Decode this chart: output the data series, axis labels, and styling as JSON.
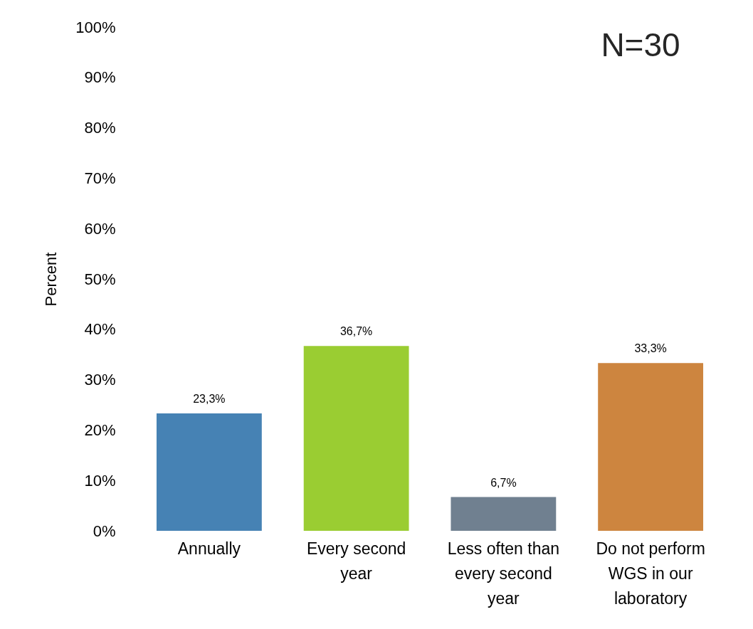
{
  "chart_data": {
    "type": "bar",
    "categories": [
      "Annually",
      "Every second year",
      "Less often than every second year",
      "Do not perform WGS in our laboratory"
    ],
    "values": [
      23.3,
      36.7,
      6.7,
      33.3
    ],
    "value_labels": [
      "23,3%",
      "36,7%",
      "6,7%",
      "33,3%"
    ],
    "colors": [
      "#4682b4",
      "#9acd32",
      "#708090",
      "#cd853f"
    ],
    "ylabel": "Percent",
    "ylim": [
      0,
      100
    ],
    "yticks": [
      {
        "value": 0,
        "label": "0%"
      },
      {
        "value": 10,
        "label": "10%"
      },
      {
        "value": 20,
        "label": "20%"
      },
      {
        "value": 30,
        "label": "30%"
      },
      {
        "value": 40,
        "label": "40%"
      },
      {
        "value": 50,
        "label": "50%"
      },
      {
        "value": 60,
        "label": "60%"
      },
      {
        "value": 70,
        "label": "70%"
      },
      {
        "value": 80,
        "label": "80%"
      },
      {
        "value": 90,
        "label": "90%"
      },
      {
        "value": 100,
        "label": "100%"
      }
    ],
    "annotations": [
      "N=30"
    ],
    "grid": false,
    "legend": false
  }
}
